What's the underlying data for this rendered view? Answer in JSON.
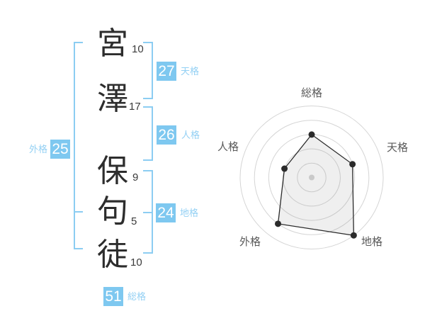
{
  "name": {
    "chars": [
      {
        "char": "宮",
        "strokes": "10"
      },
      {
        "char": "澤",
        "strokes": "17"
      },
      {
        "char": "保",
        "strokes": "9"
      },
      {
        "char": "句",
        "strokes": "5"
      },
      {
        "char": "徒",
        "strokes": "10"
      }
    ]
  },
  "kaku": {
    "tenkaku": {
      "label": "天格",
      "value": "27"
    },
    "jinkaku": {
      "label": "人格",
      "value": "26"
    },
    "chikaku": {
      "label": "地格",
      "value": "24"
    },
    "gaikaku": {
      "label": "外格",
      "value": "25"
    },
    "soukaku": {
      "label": "総格",
      "value": "51"
    }
  },
  "colors": {
    "badge_blue": "#7ec8f0",
    "label_blue": "#93d0f4",
    "bracket_blue": "#8ccdf2",
    "kanji_text": "#2d2d2d",
    "stroke_text": "#3b3b3b",
    "radar_ring": "#d5d5d5",
    "radar_line": "#2b2b2b",
    "radar_fill": "rgba(120,120,120,0.12)",
    "radar_center_dot": "#c9c9c9",
    "radar_label": "#5a5a5a"
  },
  "chart_data": {
    "type": "radar",
    "axes": [
      "総格",
      "天格",
      "地格",
      "外格",
      "人格"
    ],
    "values": [
      60,
      60,
      100,
      80,
      40
    ],
    "max": 100,
    "rings": 5,
    "start_angle_deg": -90,
    "direction": "clockwise",
    "grid": "concentric-circles",
    "legend": "none",
    "title": ""
  }
}
